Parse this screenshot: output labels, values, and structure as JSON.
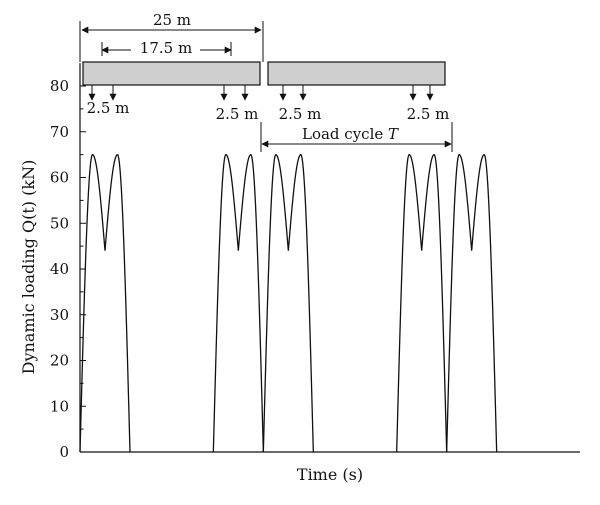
{
  "chart_data": {
    "type": "line",
    "title": "",
    "xlabel": "Time (s)",
    "ylabel": "Dynamic loading Q(t) (kN)",
    "ylim": [
      0,
      85
    ],
    "yticks": [
      0,
      10,
      20,
      30,
      40,
      50,
      60,
      70,
      80
    ],
    "xlim": [
      0,
      3.75
    ],
    "series": [
      {
        "peak_kN": 65,
        "trough_kN": 44,
        "pulses": [
          {
            "t": [
              0.0,
              0.094,
              0.188,
              0.281,
              0.375
            ],
            "q": [
              0,
              65,
              44,
              65,
              0
            ]
          },
          {
            "t": [
              1.0,
              1.094,
              1.188,
              1.281,
              1.375
            ],
            "q": [
              0,
              65,
              44,
              65,
              0
            ]
          },
          {
            "t": [
              1.375,
              1.469,
              1.563,
              1.656,
              1.75
            ],
            "q": [
              0,
              65,
              44,
              65,
              0
            ]
          },
          {
            "t": [
              2.375,
              2.469,
              2.563,
              2.656,
              2.75
            ],
            "q": [
              0,
              65,
              44,
              65,
              0
            ]
          },
          {
            "t": [
              2.75,
              2.844,
              2.938,
              3.031,
              3.125
            ],
            "q": [
              0,
              65,
              44,
              65,
              0
            ]
          }
        ]
      }
    ],
    "annotations": {
      "length_total": "25 m",
      "length_inner": "17.5 m",
      "axle_gap_labels": [
        "2.5 m",
        "2.5 m",
        "2.5 m",
        "2.5 m"
      ],
      "load_cycle_label": "Load cycle",
      "load_cycle_symbol": "T"
    }
  }
}
